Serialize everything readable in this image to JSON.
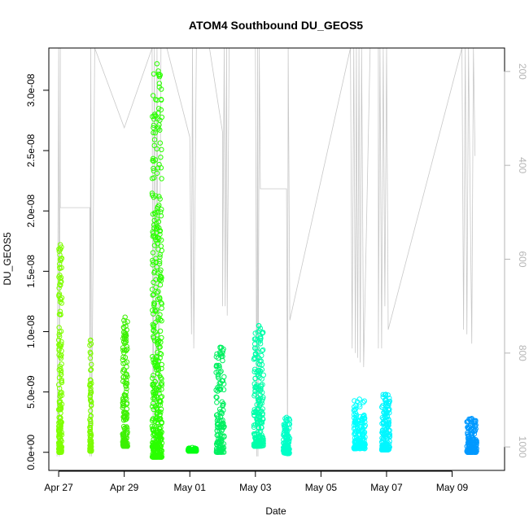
{
  "chart_data": {
    "type": "scatter",
    "title": "ATOM4 Southbound DU_GEOS5",
    "xlabel": "Date",
    "ylabel": "DU_GEOS5",
    "x_unit": "day of 2018 (Apr 27 = 0)",
    "xlim": [
      -0.3,
      13.6
    ],
    "ylim": [
      -1.5e-09,
      3.35e-08
    ],
    "x_ticks": [
      {
        "day": 0,
        "label": "Apr 27"
      },
      {
        "day": 2,
        "label": "Apr 29"
      },
      {
        "day": 4,
        "label": "May 01"
      },
      {
        "day": 6,
        "label": "May 03"
      },
      {
        "day": 8,
        "label": "May 05"
      },
      {
        "day": 10,
        "label": "May 07"
      },
      {
        "day": 12,
        "label": "May 09"
      }
    ],
    "y_ticks": [
      {
        "value": 0,
        "label": "0.0e+00"
      },
      {
        "value": 5e-09,
        "label": "5.0e-09"
      },
      {
        "value": 1e-08,
        "label": "1.0e-08"
      },
      {
        "value": 1.5e-08,
        "label": "1.5e-08"
      },
      {
        "value": 2e-08,
        "label": "2.0e-08"
      },
      {
        "value": 2.5e-08,
        "label": "2.5e-08"
      },
      {
        "value": 3e-08,
        "label": "3.0e-08"
      }
    ],
    "right_axis": {
      "color": "#b5b5b5",
      "range": [
        1050,
        150
      ],
      "ticks": [
        {
          "value": 200,
          "label": "200"
        },
        {
          "value": 400,
          "label": "400"
        },
        {
          "value": 600,
          "label": "600"
        },
        {
          "value": 800,
          "label": "800"
        },
        {
          "value": 1000,
          "label": "1000"
        }
      ]
    },
    "flights": [
      {
        "start": 0.0,
        "end": 0.1,
        "color": "#7fff00",
        "ymin": 0.0,
        "ymax": 1.72e-08,
        "n": 180
      },
      {
        "start": 0.95,
        "end": 1.0,
        "color": "#7cfc00",
        "ymin": 1e-10,
        "ymax": 9.3e-09,
        "n": 90
      },
      {
        "start": 1.95,
        "end": 2.1,
        "color": "#3cf000",
        "ymin": 5e-10,
        "ymax": 1.12e-08,
        "n": 160
      },
      {
        "start": 2.85,
        "end": 3.15,
        "color": "#2bff00",
        "ymin": -4e-10,
        "ymax": 3.22e-08,
        "n": 420
      },
      {
        "start": 3.95,
        "end": 4.2,
        "color": "#00ff11",
        "ymin": 1e-10,
        "ymax": 4e-10,
        "n": 60
      },
      {
        "start": 4.8,
        "end": 5.05,
        "color": "#00f060",
        "ymin": 0.0,
        "ymax": 8.7e-09,
        "n": 140
      },
      {
        "start": 5.95,
        "end": 6.25,
        "color": "#00ffaa",
        "ymin": 5e-10,
        "ymax": 1.05e-08,
        "n": 220
      },
      {
        "start": 6.85,
        "end": 7.05,
        "color": "#00ffc8",
        "ymin": -1e-10,
        "ymax": 2.9e-09,
        "n": 110
      },
      {
        "start": 9.0,
        "end": 9.35,
        "color": "#00ffff",
        "ymin": 3e-10,
        "ymax": 4.4e-09,
        "n": 160
      },
      {
        "start": 9.85,
        "end": 10.1,
        "color": "#00f6ff",
        "ymin": 2e-10,
        "ymax": 4.8e-09,
        "n": 150
      },
      {
        "start": 12.45,
        "end": 12.75,
        "color": "#0099ff",
        "ymin": 0.0,
        "ymax": 2.8e-09,
        "n": 150
      }
    ],
    "altitude_track": {
      "color": "#c8c8c8",
      "points": [
        [
          -0.05,
          1020
        ],
        [
          0.0,
          150
        ],
        [
          0.02,
          1020
        ],
        [
          0.05,
          150
        ],
        [
          0.05,
          490
        ],
        [
          0.95,
          490
        ],
        [
          0.95,
          1020
        ],
        [
          0.98,
          150
        ],
        [
          1.0,
          1020
        ],
        [
          1.1,
          150
        ],
        [
          2.0,
          320
        ],
        [
          2.85,
          150
        ],
        [
          2.88,
          1020
        ],
        [
          2.92,
          150
        ],
        [
          2.97,
          1020
        ],
        [
          3.0,
          150
        ],
        [
          3.05,
          1020
        ],
        [
          3.12,
          150
        ],
        [
          3.3,
          150
        ],
        [
          4.0,
          340
        ],
        [
          4.05,
          760
        ],
        [
          4.08,
          150
        ],
        [
          4.12,
          790
        ],
        [
          4.2,
          150
        ],
        [
          4.6,
          150
        ],
        [
          5.0,
          330
        ],
        [
          5.0,
          700
        ],
        [
          5.05,
          150
        ],
        [
          5.08,
          700
        ],
        [
          5.12,
          150
        ],
        [
          5.14,
          720
        ],
        [
          5.2,
          150
        ],
        [
          6.0,
          150
        ],
        [
          6.02,
          460
        ],
        [
          6.04,
          1020
        ],
        [
          6.07,
          150
        ],
        [
          6.08,
          1020
        ],
        [
          6.12,
          150
        ],
        [
          6.15,
          450
        ],
        [
          6.95,
          450
        ],
        [
          6.98,
          1020
        ],
        [
          7.0,
          150
        ],
        [
          7.05,
          730
        ],
        [
          8.9,
          150
        ],
        [
          8.95,
          790
        ],
        [
          9.0,
          150
        ],
        [
          9.05,
          800
        ],
        [
          9.08,
          150
        ],
        [
          9.12,
          810
        ],
        [
          9.16,
          150
        ],
        [
          9.2,
          820
        ],
        [
          9.24,
          150
        ],
        [
          9.3,
          830
        ],
        [
          9.5,
          150
        ],
        [
          9.75,
          150
        ],
        [
          9.75,
          790
        ],
        [
          9.8,
          150
        ],
        [
          9.85,
          790
        ],
        [
          9.9,
          150
        ],
        [
          9.95,
          700
        ],
        [
          10.0,
          150
        ],
        [
          10.05,
          750
        ],
        [
          12.3,
          150
        ],
        [
          12.35,
          750
        ],
        [
          12.4,
          150
        ],
        [
          12.45,
          760
        ],
        [
          12.5,
          150
        ],
        [
          12.6,
          780
        ],
        [
          12.65,
          150
        ],
        [
          12.7,
          380
        ]
      ]
    }
  }
}
